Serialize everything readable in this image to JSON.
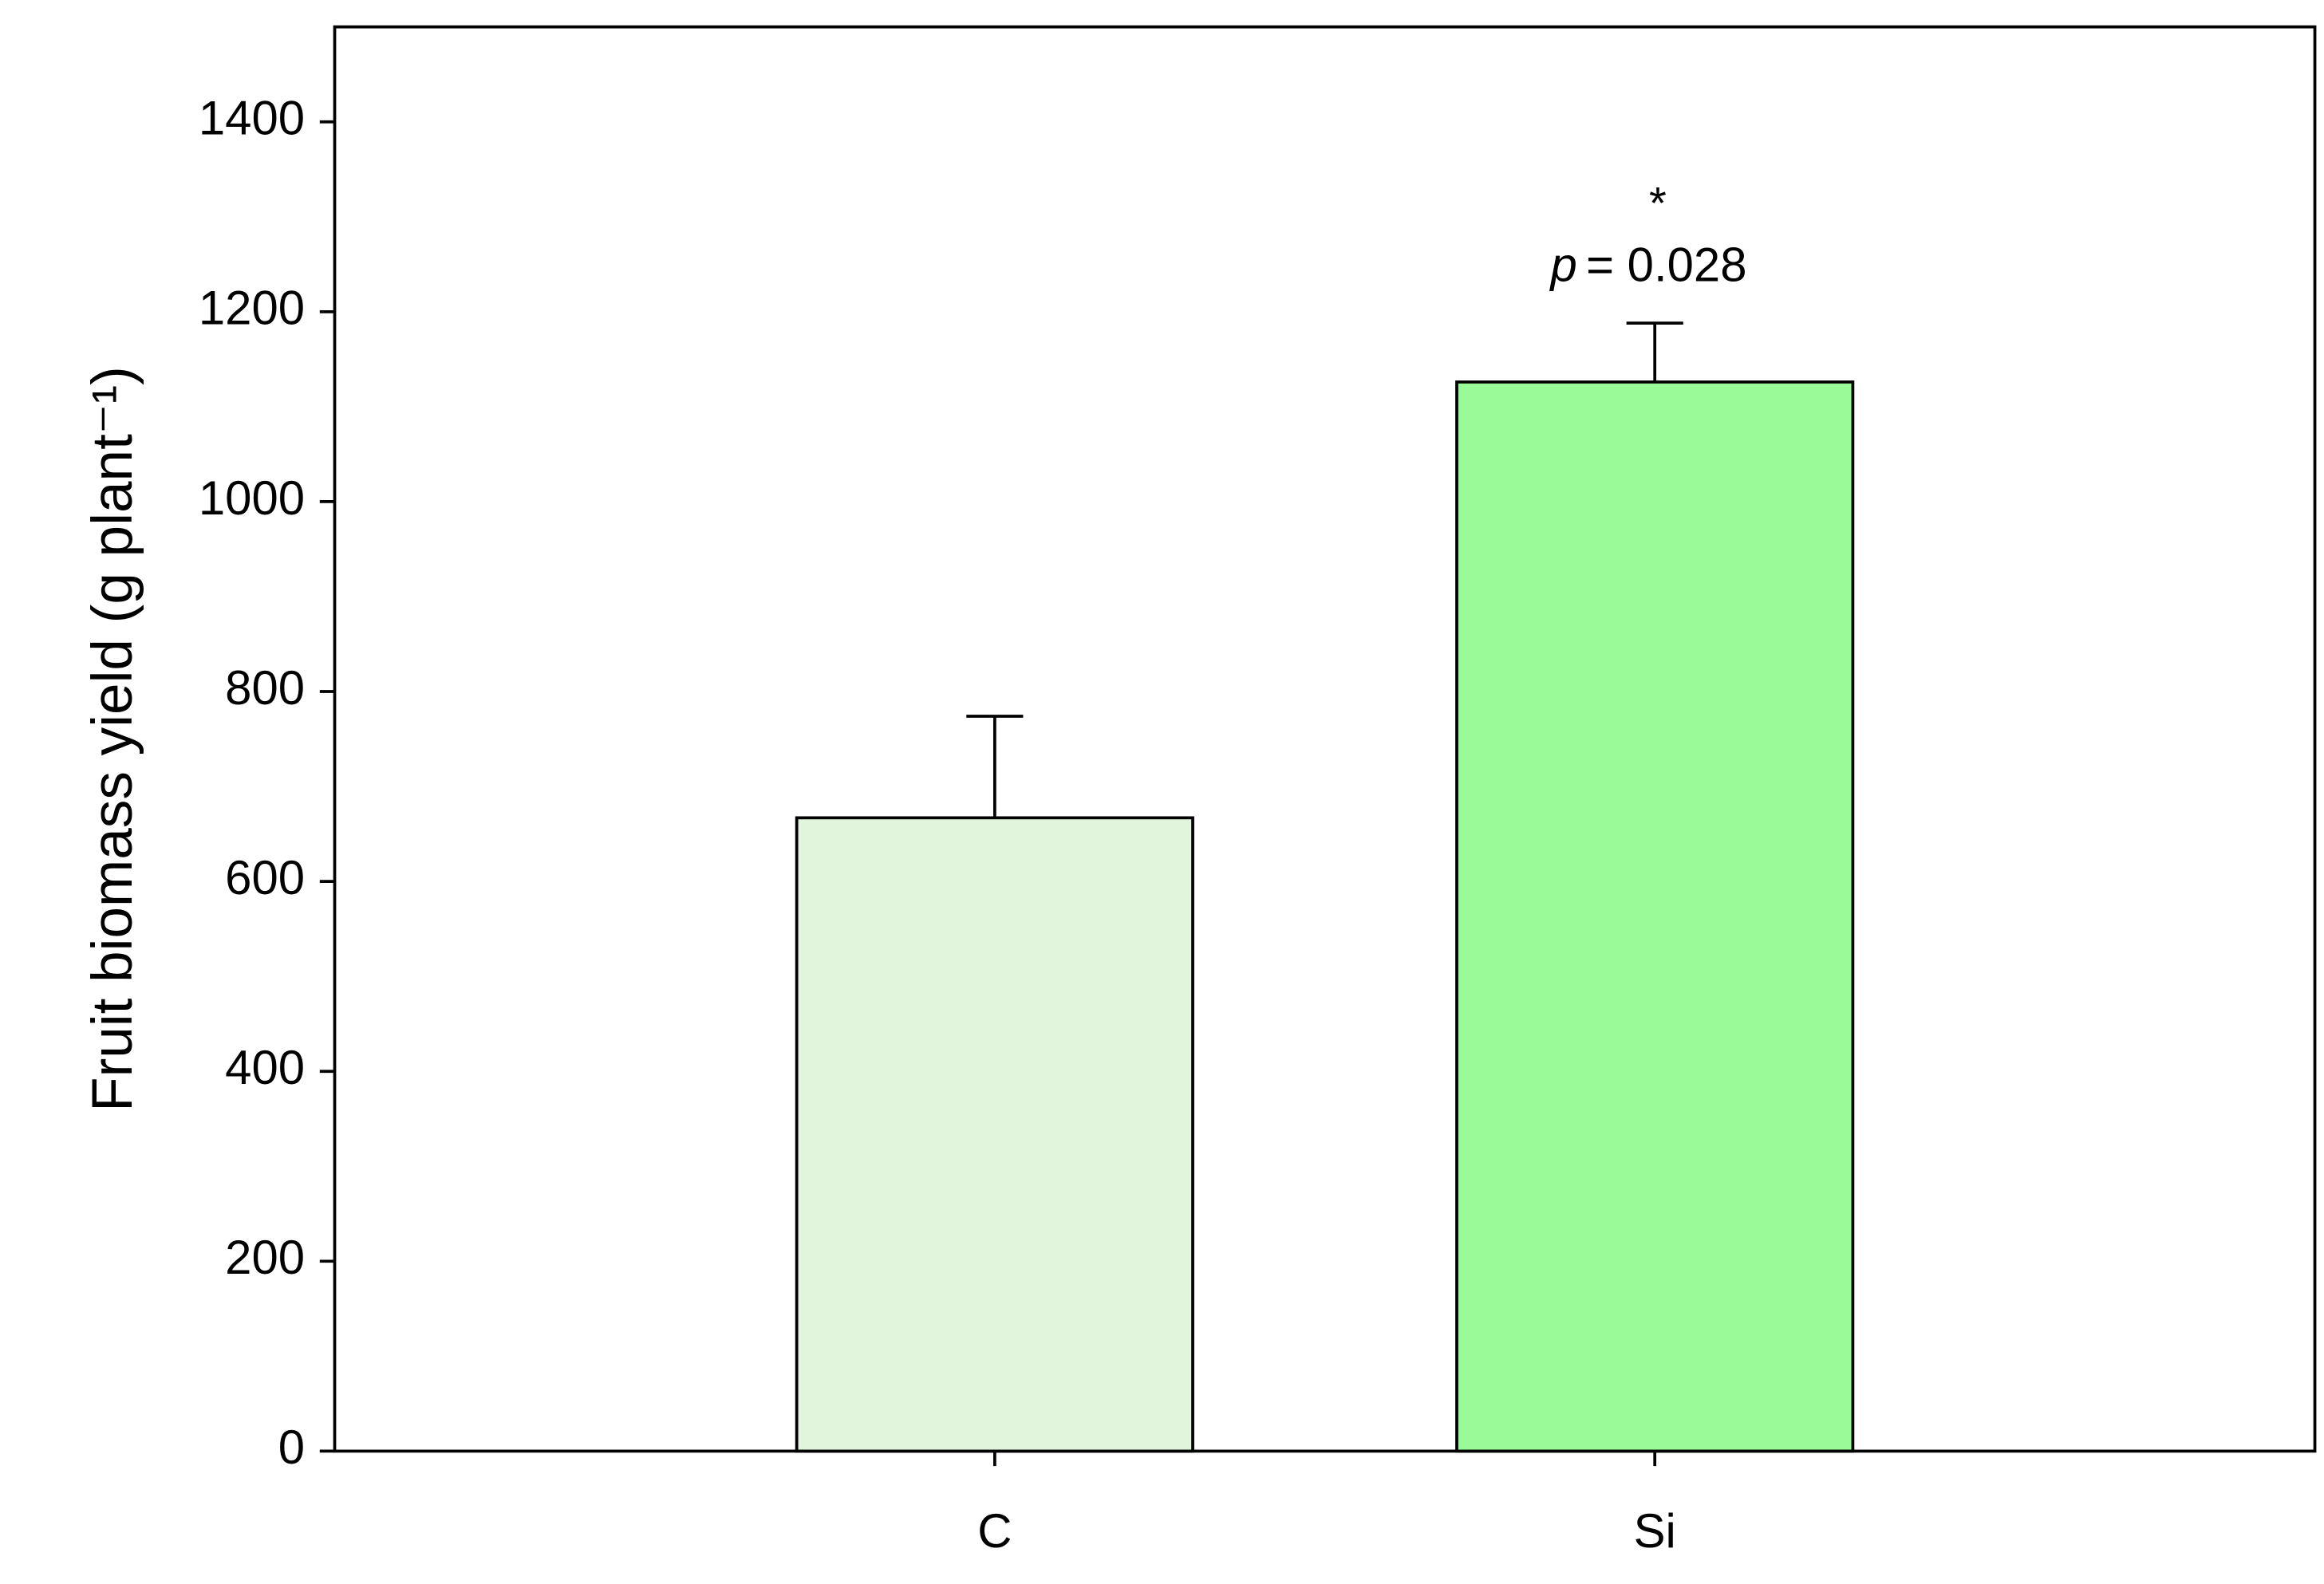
{
  "chart_data": {
    "type": "bar",
    "y_label": "Fruit biomass yield (g plant⁻¹)",
    "categories": [
      "C",
      "Si"
    ],
    "values": [
      667,
      1126
    ],
    "errors": [
      107,
      62
    ],
    "colors": [
      "#e0f5dc",
      "#98fb98"
    ],
    "ylim": [
      0,
      1500
    ],
    "yticks": [
      0,
      200,
      400,
      600,
      800,
      1000,
      1200,
      1400
    ],
    "annotations": [
      "*",
      "p",
      "= 0.028"
    ]
  }
}
